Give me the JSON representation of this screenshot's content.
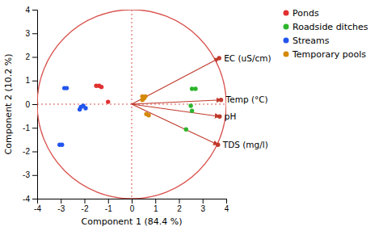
{
  "chart_data": {
    "type": "scatter",
    "xlabel": "Component 1  (84.4 %)",
    "ylabel": "Component 2 (10.2 %)",
    "xlim": [
      -4,
      4
    ],
    "ylim": [
      -4,
      4
    ],
    "xticks": [
      -4,
      -3,
      -2,
      -1,
      0,
      1,
      2,
      3,
      4
    ],
    "yticks": [
      -4,
      -3,
      -2,
      -1,
      0,
      1,
      2,
      3,
      4
    ],
    "legend": "right",
    "circle_radius": 4,
    "circle_color": "#d9534f",
    "vectors": {
      "labels": [
        "EC (uS/cm)",
        "Temp (°C)",
        "pH",
        "TDS (mg/l)"
      ],
      "x": [
        3.7,
        3.78,
        3.72,
        3.65
      ],
      "y": [
        1.95,
        0.18,
        -0.52,
        -1.72
      ],
      "color": "#c0392b"
    },
    "series": [
      {
        "name": "Ponds",
        "color": "#e03030",
        "x": [
          -1.0,
          -1.5,
          -1.38,
          -1.28
        ],
        "y": [
          0.1,
          0.78,
          0.78,
          0.73
        ]
      },
      {
        "name": "Roadside ditches",
        "color": "#2db52d",
        "x": [
          2.55,
          2.7,
          2.5,
          2.3,
          2.55
        ],
        "y": [
          0.65,
          0.65,
          -0.07,
          -1.07,
          -0.28
        ]
      },
      {
        "name": "Streams",
        "color": "#2255ee",
        "x": [
          -2.95,
          -3.05,
          -2.85,
          -2.75,
          -2.05,
          -2.15,
          -1.95,
          -2.2
        ],
        "y": [
          -1.72,
          -1.72,
          0.68,
          0.68,
          -0.07,
          -0.12,
          -0.17,
          -0.22
        ]
      },
      {
        "name": "Temporary pools",
        "color": "#d4890a",
        "x": [
          0.45,
          0.58,
          0.52,
          0.45,
          0.72,
          0.62
        ],
        "y": [
          0.33,
          0.33,
          0.25,
          0.18,
          -0.47,
          -0.42
        ]
      }
    ]
  }
}
